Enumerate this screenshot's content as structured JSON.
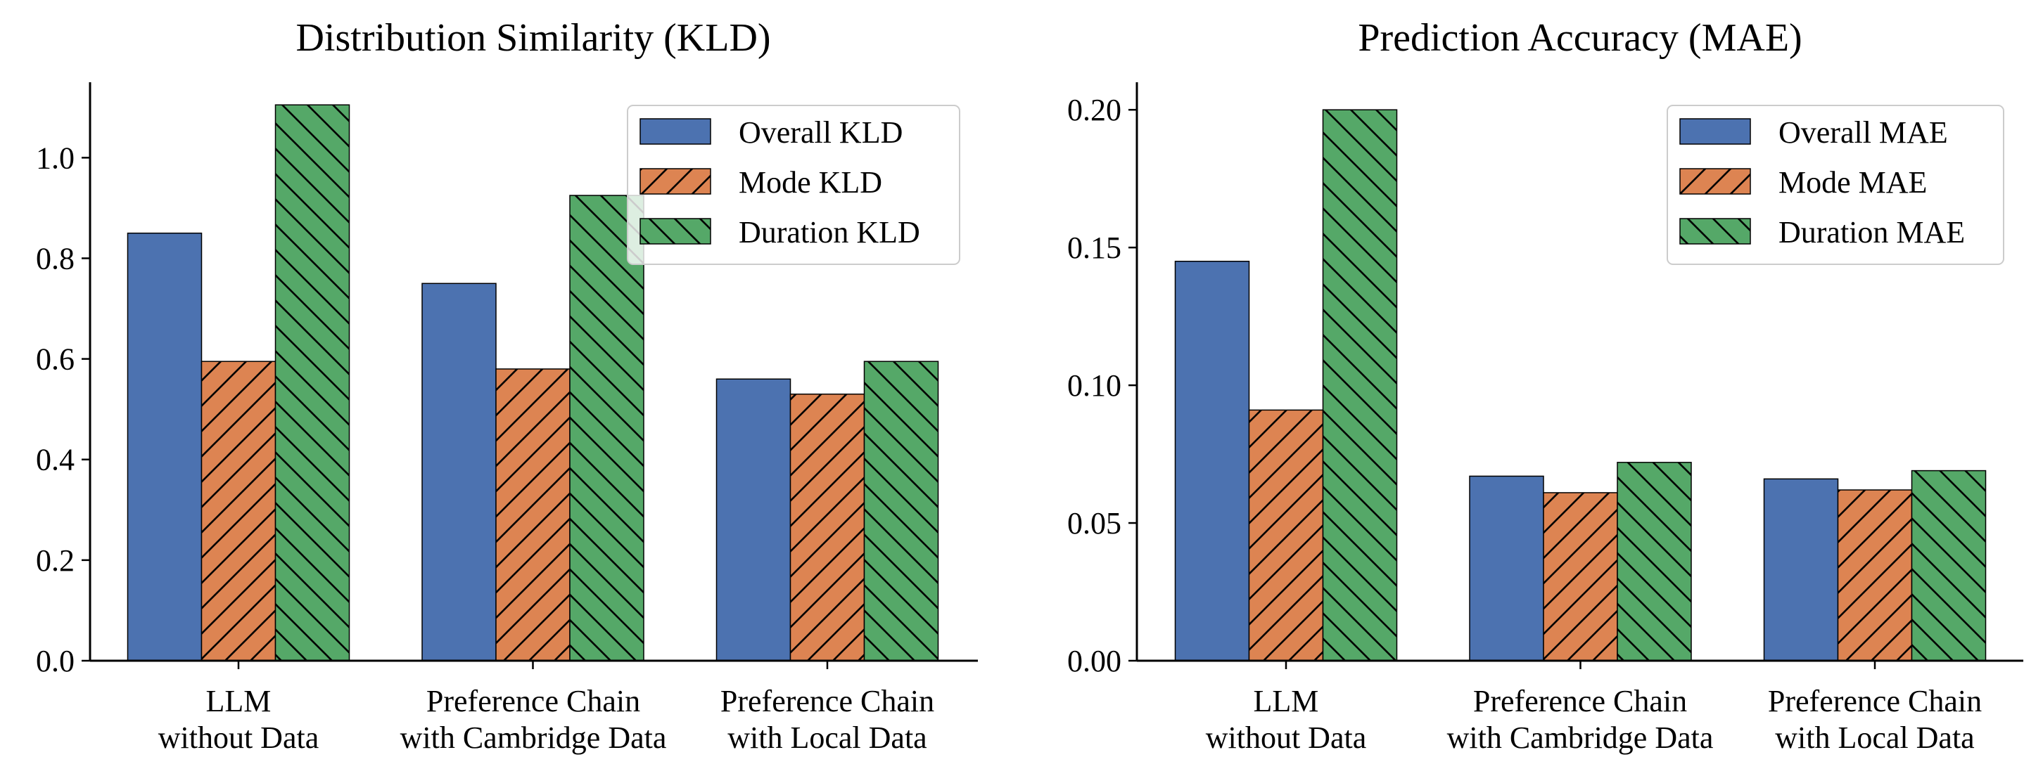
{
  "chart_data": [
    {
      "type": "bar",
      "title": "Distribution Similarity (KLD)",
      "xlabel": "",
      "ylabel": "",
      "categories": [
        [
          "LLM",
          "without Data"
        ],
        [
          "Preference Chain",
          "with Cambridge Data"
        ],
        [
          "Preference Chain",
          "with Local Data"
        ]
      ],
      "series": [
        {
          "name": "Overall KLD",
          "values": [
            0.85,
            0.75,
            0.56
          ],
          "color": "#4c72b0",
          "hatch": "none"
        },
        {
          "name": "Mode KLD",
          "values": [
            0.595,
            0.58,
            0.53
          ],
          "color": "#dd8452",
          "hatch": "forward"
        },
        {
          "name": "Duration KLD",
          "values": [
            1.105,
            0.925,
            0.595
          ],
          "color": "#55a868",
          "hatch": "back"
        }
      ],
      "ylim": [
        0,
        1.15
      ],
      "yticks": [
        "0.0",
        "0.2",
        "0.4",
        "0.6",
        "0.8",
        "1.0"
      ],
      "legend_position": "top-right",
      "grid": false
    },
    {
      "type": "bar",
      "title": "Prediction Accuracy (MAE)",
      "xlabel": "",
      "ylabel": "",
      "categories": [
        [
          "LLM",
          "without Data"
        ],
        [
          "Preference Chain",
          "with Cambridge Data"
        ],
        [
          "Preference Chain",
          "with Local Data"
        ]
      ],
      "series": [
        {
          "name": "Overall MAE",
          "values": [
            0.145,
            0.067,
            0.066
          ],
          "color": "#4c72b0",
          "hatch": "none"
        },
        {
          "name": "Mode MAE",
          "values": [
            0.091,
            0.061,
            0.062
          ],
          "color": "#dd8452",
          "hatch": "forward"
        },
        {
          "name": "Duration MAE",
          "values": [
            0.2,
            0.072,
            0.069
          ],
          "color": "#55a868",
          "hatch": "back"
        }
      ],
      "ylim": [
        0,
        0.21
      ],
      "yticks": [
        "0.00",
        "0.05",
        "0.10",
        "0.15",
        "0.20"
      ],
      "legend_position": "top-right",
      "grid": false
    }
  ]
}
